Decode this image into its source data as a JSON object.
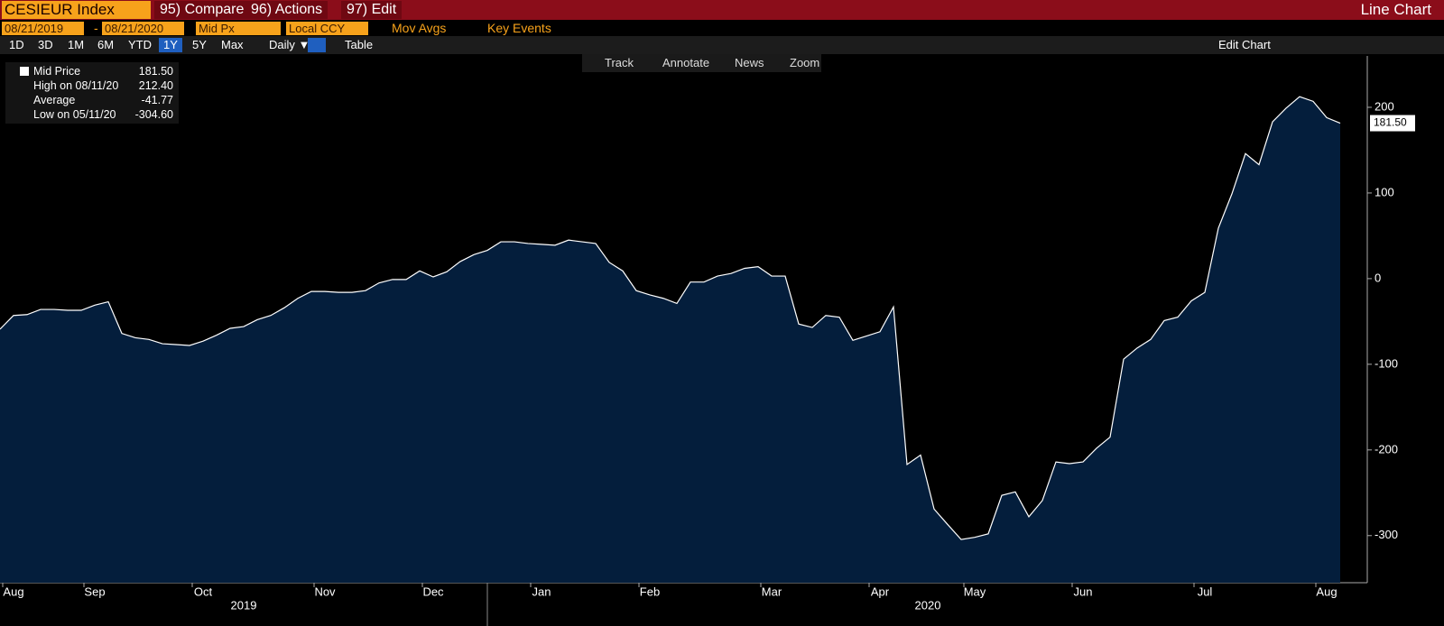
{
  "header": {
    "security": "CESIEUR Index",
    "menu": [
      "95) Compare",
      "96) Actions",
      "97) Edit"
    ],
    "view": "Line Chart"
  },
  "controls": {
    "start_date": "08/21/2019",
    "date_sep": "-",
    "end_date": "08/21/2020",
    "field": "Mid Px",
    "currency": "Local CCY",
    "mov_avgs": "Mov Avgs",
    "key_events": "Key Events"
  },
  "ranges": [
    "1D",
    "3D",
    "1M",
    "6M",
    "YTD",
    "1Y",
    "5Y",
    "Max"
  ],
  "selected_range": "1Y",
  "period": "Daily ▼",
  "table": "Table",
  "edit_chart": "Edit Chart",
  "tools": [
    "Track",
    "Annotate",
    "News",
    "Zoom"
  ],
  "legend": [
    [
      "Mid Price",
      "181.50"
    ],
    [
      "High on 08/11/20",
      "212.40"
    ],
    [
      "Average",
      "-41.77"
    ],
    [
      "Low on 05/11/20",
      "-304.60"
    ]
  ],
  "chart_data": {
    "type": "area",
    "color": "#ffffff",
    "fill": "#041e3c",
    "categories": [
      null,
      "Aug",
      null,
      null,
      null,
      null,
      null,
      "Sep",
      null,
      null,
      null,
      null,
      null,
      null,
      null,
      "Oct",
      null,
      null,
      null,
      null,
      null,
      null,
      null,
      null,
      "Nov",
      null,
      null,
      null,
      null,
      null,
      null,
      null,
      "Dec",
      null,
      null,
      null,
      null,
      null,
      null,
      null,
      "Jan",
      null,
      null,
      null,
      null,
      null,
      null,
      null,
      "Feb",
      null,
      null,
      null,
      null,
      null,
      null,
      null,
      null,
      "Mar",
      null,
      null,
      null,
      null,
      null,
      null,
      null,
      "Apr",
      null,
      null,
      null,
      null,
      null,
      null,
      "May",
      null,
      null,
      null,
      null,
      null,
      null,
      null,
      "Jun",
      null,
      null,
      null,
      null,
      null,
      null,
      null,
      null,
      "Jul",
      null,
      null,
      null,
      null,
      null,
      null,
      null,
      null,
      "Aug",
      null
    ],
    "years": [
      "2019",
      "2020"
    ],
    "values": [
      -59,
      -43,
      -42,
      -36,
      -36,
      -37,
      -37,
      -31,
      -27,
      -64,
      -69,
      -71,
      -76,
      -77,
      -78,
      -73,
      -66,
      -58,
      -56,
      -48,
      -43,
      -34,
      -23,
      -15,
      -15,
      -16,
      -16,
      -14,
      -5,
      -1,
      -1,
      9,
      2,
      8,
      20,
      28,
      33,
      43,
      43,
      41,
      40,
      39,
      45,
      43,
      41,
      19,
      9,
      -14,
      -19,
      -23,
      -29,
      -4,
      -4,
      3,
      6,
      12,
      14,
      3,
      3,
      -53,
      -57,
      -43,
      -45,
      -72,
      -67,
      -62,
      -33,
      -217,
      -206,
      -269,
      -287,
      -304.6,
      -302,
      -298,
      -253,
      -249,
      -278,
      -259,
      -214,
      -216,
      -214,
      -198,
      -185,
      -94,
      -81,
      -71,
      -49,
      -45,
      -26,
      -16,
      59,
      99,
      146,
      133,
      183,
      199,
      212.4,
      207,
      188,
      181.5
    ],
    "last_label": "181.50",
    "ylim": [
      -355,
      260
    ],
    "yticks": [
      200,
      100,
      0,
      -100,
      -200,
      -300
    ]
  }
}
